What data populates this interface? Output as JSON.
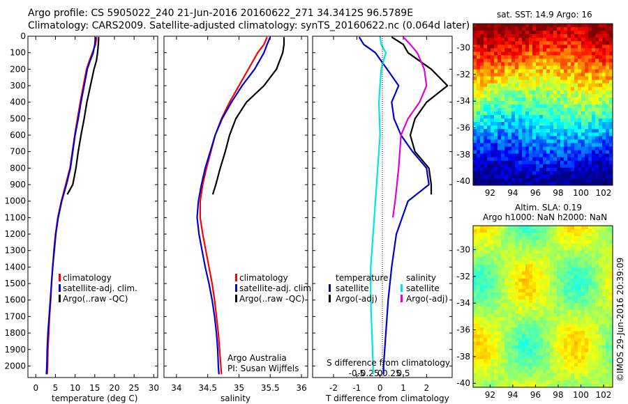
{
  "header": {
    "line1": "Argo profile: CS 5905022_240 21-Jun-2016 20160622_271 34.3412S 96.5789E",
    "line2": "Climatology: CARS2009. Satellite-adjusted climatology: synTS_20160622.nc (0.064d later)"
  },
  "colors": {
    "climatology": "#ff0000",
    "satellite": "#0000cc",
    "argo": "#000000",
    "satellite_s": "#00e5e5",
    "argo_s": "#e000e0"
  },
  "side_text": "©IMOS 29-Jun-2016 20:39:09",
  "chart_data": [
    {
      "type": "line",
      "panel": "temperature",
      "xlabel": "temperature (deg C)",
      "ylabel": "",
      "xlim": [
        -2,
        31
      ],
      "ylim": [
        2070,
        0
      ],
      "y_reversed": true,
      "xticks": [
        "0",
        "5",
        "10",
        "15",
        "20",
        "25",
        "30"
      ],
      "yticks": [
        "0",
        "100",
        "200",
        "300",
        "400",
        "500",
        "600",
        "700",
        "800",
        "900",
        "1000",
        "1100",
        "1200",
        "1300",
        "1400",
        "1500",
        "1600",
        "1700",
        "1800",
        "1900",
        "2000"
      ],
      "legend": [
        "climatology",
        "satellite-adj. clim.",
        "Argo(..raw -QC)"
      ],
      "series": [
        {
          "name": "climatology",
          "color": "#ff0000",
          "points": [
            [
              15.5,
              5
            ],
            [
              15.2,
              50
            ],
            [
              14.4,
              100
            ],
            [
              13.6,
              150
            ],
            [
              12.9,
              200
            ],
            [
              12.1,
              300
            ],
            [
              11.3,
              400
            ],
            [
              10.6,
              500
            ],
            [
              9.9,
              600
            ],
            [
              9.3,
              700
            ],
            [
              8.7,
              800
            ],
            [
              7.6,
              900
            ],
            [
              6.5,
              1000
            ],
            [
              5.6,
              1100
            ],
            [
              5.0,
              1200
            ],
            [
              4.6,
              1300
            ],
            [
              4.3,
              1400
            ],
            [
              4.0,
              1500
            ],
            [
              3.8,
              1600
            ],
            [
              3.5,
              1700
            ],
            [
              3.3,
              1800
            ],
            [
              3.1,
              1900
            ],
            [
              3.0,
              2000
            ],
            [
              2.9,
              2050
            ]
          ]
        },
        {
          "name": "satellite-adj. clim.",
          "color": "#0000cc",
          "points": [
            [
              15.2,
              5
            ],
            [
              15.0,
              50
            ],
            [
              14.6,
              100
            ],
            [
              13.8,
              150
            ],
            [
              13.1,
              200
            ],
            [
              12.3,
              300
            ],
            [
              11.5,
              400
            ],
            [
              10.8,
              500
            ],
            [
              10.0,
              600
            ],
            [
              9.4,
              700
            ],
            [
              8.8,
              800
            ],
            [
              7.8,
              900
            ],
            [
              6.6,
              1000
            ],
            [
              5.7,
              1100
            ],
            [
              5.1,
              1200
            ],
            [
              4.7,
              1300
            ],
            [
              4.3,
              1400
            ],
            [
              4.0,
              1500
            ],
            [
              3.7,
              1600
            ],
            [
              3.4,
              1700
            ],
            [
              3.1,
              1800
            ],
            [
              2.9,
              1900
            ],
            [
              2.8,
              2000
            ],
            [
              2.7,
              2050
            ]
          ]
        },
        {
          "name": "Argo(..raw -QC)",
          "color": "#000000",
          "points": [
            [
              16.0,
              5
            ],
            [
              15.9,
              50
            ],
            [
              15.7,
              100
            ],
            [
              15.4,
              150
            ],
            [
              14.8,
              200
            ],
            [
              13.9,
              300
            ],
            [
              13.0,
              400
            ],
            [
              12.3,
              500
            ],
            [
              11.5,
              600
            ],
            [
              10.8,
              700
            ],
            [
              10.2,
              800
            ],
            [
              9.4,
              900
            ],
            [
              8.0,
              960
            ]
          ]
        }
      ]
    },
    {
      "type": "line",
      "panel": "salinity",
      "xlabel": "salinity",
      "ylabel": "",
      "xlim": [
        33.8,
        36.1
      ],
      "ylim": [
        2070,
        0
      ],
      "y_reversed": true,
      "xticks": [
        "34",
        "34.5",
        "35",
        "35.5",
        "36"
      ],
      "legend": [
        "climatology",
        "satellite-adj. clim.",
        "Argo(..raw -QC)"
      ],
      "annotation": [
        "Argo Australia",
        "PI: Susan Wijffels"
      ],
      "series": [
        {
          "name": "climatology",
          "color": "#ff0000",
          "points": [
            [
              35.45,
              5
            ],
            [
              35.4,
              50
            ],
            [
              35.3,
              100
            ],
            [
              35.15,
              200
            ],
            [
              35.0,
              300
            ],
            [
              34.85,
              400
            ],
            [
              34.72,
              500
            ],
            [
              34.62,
              600
            ],
            [
              34.55,
              700
            ],
            [
              34.48,
              800
            ],
            [
              34.42,
              900
            ],
            [
              34.38,
              1000
            ],
            [
              34.38,
              1100
            ],
            [
              34.42,
              1200
            ],
            [
              34.47,
              1300
            ],
            [
              34.52,
              1400
            ],
            [
              34.57,
              1500
            ],
            [
              34.61,
              1600
            ],
            [
              34.64,
              1700
            ],
            [
              34.67,
              1800
            ],
            [
              34.69,
              1900
            ],
            [
              34.71,
              2000
            ],
            [
              34.72,
              2050
            ]
          ]
        },
        {
          "name": "satellite-adj. clim.",
          "color": "#0000cc",
          "points": [
            [
              35.5,
              5
            ],
            [
              35.45,
              50
            ],
            [
              35.4,
              100
            ],
            [
              35.25,
              200
            ],
            [
              35.05,
              300
            ],
            [
              34.88,
              400
            ],
            [
              34.73,
              500
            ],
            [
              34.62,
              600
            ],
            [
              34.54,
              700
            ],
            [
              34.46,
              800
            ],
            [
              34.4,
              900
            ],
            [
              34.35,
              1000
            ],
            [
              34.33,
              1100
            ],
            [
              34.36,
              1200
            ],
            [
              34.41,
              1300
            ],
            [
              34.46,
              1400
            ],
            [
              34.52,
              1500
            ],
            [
              34.57,
              1600
            ],
            [
              34.61,
              1700
            ],
            [
              34.64,
              1800
            ],
            [
              34.66,
              1900
            ],
            [
              34.67,
              2000
            ],
            [
              34.68,
              2050
            ]
          ]
        },
        {
          "name": "Argo(..raw -QC)",
          "color": "#000000",
          "points": [
            [
              35.72,
              5
            ],
            [
              35.72,
              50
            ],
            [
              35.7,
              100
            ],
            [
              35.6,
              200
            ],
            [
              35.4,
              300
            ],
            [
              35.12,
              400
            ],
            [
              34.95,
              500
            ],
            [
              34.85,
              600
            ],
            [
              34.78,
              700
            ],
            [
              34.7,
              800
            ],
            [
              34.63,
              900
            ],
            [
              34.58,
              960
            ]
          ]
        }
      ]
    },
    {
      "type": "line",
      "panel": "difference",
      "xlabel": "T difference from climatology",
      "xlabel2": "S difference from climatology",
      "xlim": [
        -2.9,
        3.1
      ],
      "ylim": [
        2070,
        0
      ],
      "y_reversed": true,
      "xticks": [
        "-2",
        "-1",
        "0",
        "1",
        "2"
      ],
      "xticks2": [
        "-0.5",
        "-0.25",
        "0",
        "0.25",
        "0.5"
      ],
      "legend_title_t": "temperature",
      "legend_title_s": "salinity",
      "legend": [
        "satellite",
        "Argo(-adj)",
        "satellite",
        "Argo(-adj)"
      ],
      "series": [
        {
          "name": "temperature satellite",
          "color": "#0000cc",
          "points": [
            [
              -0.9,
              5
            ],
            [
              -0.7,
              50
            ],
            [
              -0.2,
              100
            ],
            [
              0.3,
              200
            ],
            [
              0.8,
              300
            ],
            [
              0.5,
              400
            ],
            [
              0.6,
              500
            ],
            [
              0.9,
              600
            ],
            [
              1.4,
              700
            ],
            [
              2.0,
              800
            ],
            [
              2.1,
              900
            ],
            [
              1.2,
              1000
            ],
            [
              0.7,
              1200
            ],
            [
              0.5,
              1400
            ],
            [
              0.35,
              1600
            ],
            [
              0.25,
              1800
            ],
            [
              0.15,
              2000
            ],
            [
              0.15,
              2050
            ]
          ]
        },
        {
          "name": "temperature Argo(-adj)",
          "color": "#000000",
          "points": [
            [
              0.5,
              5
            ],
            [
              1.0,
              50
            ],
            [
              1.2,
              100
            ],
            [
              2.2,
              200
            ],
            [
              2.9,
              300
            ],
            [
              2.0,
              400
            ],
            [
              1.5,
              500
            ],
            [
              1.3,
              600
            ],
            [
              1.5,
              700
            ],
            [
              2.1,
              800
            ],
            [
              2.2,
              900
            ],
            [
              2.2,
              960
            ]
          ]
        },
        {
          "name": "salinity satellite",
          "color": "#00e5e5",
          "points": [
            [
              0.0,
              5
            ],
            [
              0.05,
              50
            ],
            [
              0.25,
              100
            ],
            [
              0.05,
              200
            ],
            [
              -0.05,
              400
            ],
            [
              0.0,
              600
            ],
            [
              -0.1,
              800
            ],
            [
              -0.2,
              1000
            ],
            [
              -0.3,
              1200
            ],
            [
              -0.4,
              1400
            ],
            [
              -0.4,
              1600
            ],
            [
              -0.35,
              1800
            ],
            [
              -0.3,
              2000
            ],
            [
              -0.3,
              2050
            ]
          ]
        },
        {
          "name": "salinity Argo(-adj)",
          "color": "#e000e0",
          "points": [
            [
              1.0,
              5
            ],
            [
              1.3,
              50
            ],
            [
              1.6,
              100
            ],
            [
              1.9,
              200
            ],
            [
              2.0,
              300
            ],
            [
              1.7,
              400
            ],
            [
              1.2,
              500
            ],
            [
              0.9,
              600
            ],
            [
              0.8,
              800
            ],
            [
              0.65,
              1000
            ],
            [
              0.55,
              1100
            ]
          ]
        }
      ]
    },
    {
      "type": "heatmap",
      "panel": "sst_map",
      "title": "sat. SST: 14.9 Argo: 16",
      "xticks": [
        "92",
        "94",
        "96",
        "98",
        "100",
        "102"
      ],
      "yticks": [
        "-30",
        "-32",
        "-34",
        "-36",
        "-38",
        "-40"
      ],
      "xlim": [
        90.5,
        102.8
      ],
      "ylim": [
        -40.3,
        -28.2
      ]
    },
    {
      "type": "heatmap",
      "panel": "sla_map",
      "title": "Altim. SLA: 0.19",
      "title2": "Argo h1000: NaN h2000: NaN",
      "xticks": [
        "92",
        "94",
        "96",
        "98",
        "100",
        "102"
      ],
      "yticks": [
        "-30",
        "-32",
        "-34",
        "-36",
        "-38",
        "-40"
      ],
      "xlim": [
        90.5,
        102.8
      ],
      "ylim": [
        -40.3,
        -28.2
      ]
    }
  ]
}
